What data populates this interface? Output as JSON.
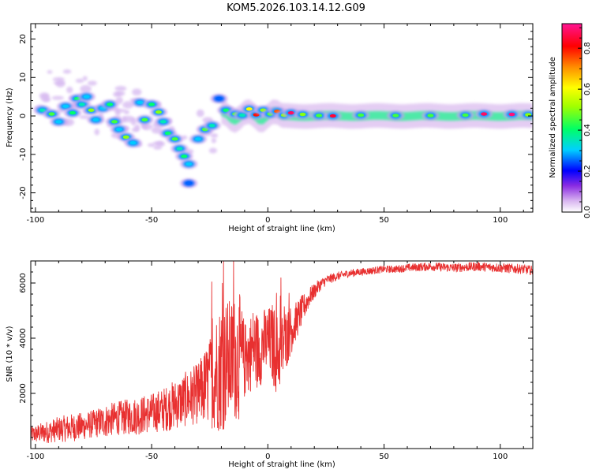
{
  "page_title": "KOM5.2026.103.14.12.G09",
  "chart_data": [
    {
      "type": "heatmap",
      "title": "KOM5.2026.103.14.12.G09",
      "xlabel": "Height of straight line (km)",
      "ylabel": "Frequency (Hz)",
      "xlim": [
        -102,
        114
      ],
      "ylim": [
        -25,
        24
      ],
      "x_ticks": [
        -100,
        -50,
        0,
        50,
        100
      ],
      "x_tick_labels": [
        "-100",
        "-50",
        "0",
        "50",
        "100"
      ],
      "y_ticks": [
        -20,
        -10,
        0,
        10,
        20
      ],
      "y_tick_labels": [
        "-20",
        "-10",
        "0",
        "10",
        "20"
      ],
      "colorbar": {
        "label": "Normalized spectral amplitude",
        "range": [
          0,
          0.92
        ],
        "ticks": [
          0.0,
          0.2,
          0.4,
          0.6,
          0.8
        ],
        "tick_labels": [
          "0.0",
          "0.2",
          "0.4",
          "0.6",
          "0.8"
        ]
      },
      "blobs": [
        {
          "x": -97,
          "y": 1.5,
          "value": 0.35
        },
        {
          "x": -93,
          "y": 0.5,
          "value": 0.45
        },
        {
          "x": -90,
          "y": -1.5,
          "value": 0.3
        },
        {
          "x": -87,
          "y": 2.5,
          "value": 0.3
        },
        {
          "x": -84,
          "y": 0.8,
          "value": 0.4
        },
        {
          "x": -82,
          "y": 4.5,
          "value": 0.4
        },
        {
          "x": -80,
          "y": 3.0,
          "value": 0.35
        },
        {
          "x": -78,
          "y": 5.0,
          "value": 0.3
        },
        {
          "x": -76,
          "y": 1.5,
          "value": 0.5
        },
        {
          "x": -74,
          "y": -1.0,
          "value": 0.3
        },
        {
          "x": -71,
          "y": 2.0,
          "value": 0.3
        },
        {
          "x": -68,
          "y": 3.0,
          "value": 0.4
        },
        {
          "x": -66,
          "y": -1.5,
          "value": 0.45
        },
        {
          "x": -64,
          "y": -3.5,
          "value": 0.3
        },
        {
          "x": -61,
          "y": -5.5,
          "value": 0.5
        },
        {
          "x": -58,
          "y": -7.0,
          "value": 0.3
        },
        {
          "x": -55,
          "y": 3.5,
          "value": 0.3
        },
        {
          "x": -53,
          "y": -1.0,
          "value": 0.45
        },
        {
          "x": -50,
          "y": 3.0,
          "value": 0.4
        },
        {
          "x": -47,
          "y": 1.0,
          "value": 0.5
        },
        {
          "x": -45,
          "y": -1.5,
          "value": 0.35
        },
        {
          "x": -43,
          "y": -4.5,
          "value": 0.4
        },
        {
          "x": -40,
          "y": -6.0,
          "value": 0.45
        },
        {
          "x": -38,
          "y": -8.5,
          "value": 0.35
        },
        {
          "x": -36,
          "y": -10.5,
          "value": 0.4
        },
        {
          "x": -34,
          "y": -12.5,
          "value": 0.3
        },
        {
          "x": -34,
          "y": -17.5,
          "value": 0.25
        },
        {
          "x": -30,
          "y": -6.0,
          "value": 0.3
        },
        {
          "x": -27,
          "y": -3.5,
          "value": 0.45
        },
        {
          "x": -24,
          "y": -2.5,
          "value": 0.35
        },
        {
          "x": -21,
          "y": 4.5,
          "value": 0.25
        },
        {
          "x": -18,
          "y": 1.5,
          "value": 0.4
        },
        {
          "x": -14,
          "y": 0.5,
          "value": 0.45
        },
        {
          "x": -11,
          "y": 0.2,
          "value": 0.35
        },
        {
          "x": -8,
          "y": 1.8,
          "value": 0.6
        },
        {
          "x": -5,
          "y": 0.3,
          "value": 0.8
        },
        {
          "x": -2,
          "y": 1.5,
          "value": 0.5
        },
        {
          "x": 1,
          "y": 0.5,
          "value": 0.45
        },
        {
          "x": 4,
          "y": 1.2,
          "value": 0.75
        },
        {
          "x": 7,
          "y": 0.2,
          "value": 0.5
        },
        {
          "x": 10,
          "y": 0.8,
          "value": 0.88
        },
        {
          "x": 15,
          "y": 0.4,
          "value": 0.5
        },
        {
          "x": 22,
          "y": 0.1,
          "value": 0.45
        },
        {
          "x": 28,
          "y": 0.0,
          "value": 0.85
        },
        {
          "x": 40,
          "y": 0.2,
          "value": 0.45
        },
        {
          "x": 55,
          "y": 0.1,
          "value": 0.45
        },
        {
          "x": 70,
          "y": 0.1,
          "value": 0.45
        },
        {
          "x": 85,
          "y": 0.2,
          "value": 0.45
        },
        {
          "x": 93,
          "y": 0.5,
          "value": 0.88
        },
        {
          "x": 105,
          "y": 0.4,
          "value": 0.9
        },
        {
          "x": 112,
          "y": 0.3,
          "value": 0.5
        }
      ]
    },
    {
      "type": "line",
      "xlabel": "Height of straight line (km)",
      "ylabel": "SNR (10 * v/v)",
      "xlim": [
        -102,
        114
      ],
      "ylim": [
        0,
        6800
      ],
      "x_ticks": [
        -100,
        -50,
        0,
        50,
        100
      ],
      "x_tick_labels": [
        "-100",
        "-50",
        "0",
        "50",
        "100"
      ],
      "y_ticks": [
        2000,
        4000,
        6000
      ],
      "y_tick_labels": [
        "2000",
        "4000",
        "6000"
      ],
      "series": [
        {
          "name": "SNR",
          "color": "#e83030",
          "x": [
            -102,
            -95,
            -90,
            -85,
            -80,
            -75,
            -70,
            -65,
            -60,
            -55,
            -50,
            -45,
            -40,
            -35,
            -30,
            -25,
            -22,
            -20,
            -18,
            -16,
            -14,
            -12,
            -10,
            -8,
            -6,
            -4,
            -2,
            0,
            2,
            4,
            6,
            8,
            10,
            12,
            14,
            16,
            18,
            20,
            22,
            25,
            30,
            35,
            40,
            45,
            50,
            55,
            60,
            70,
            80,
            90,
            100,
            110,
            114
          ],
          "values": [
            500,
            600,
            700,
            750,
            800,
            900,
            1000,
            1100,
            1150,
            1200,
            1300,
            1400,
            1600,
            1800,
            2000,
            2400,
            2800,
            3000,
            3100,
            3200,
            3300,
            3300,
            3200,
            3400,
            3700,
            3500,
            3800,
            3900,
            3800,
            3400,
            3600,
            4000,
            4300,
            4600,
            4900,
            5200,
            5500,
            5700,
            5900,
            6100,
            6250,
            6350,
            6400,
            6450,
            6500,
            6500,
            6550,
            6600,
            6550,
            6600,
            6550,
            6500,
            6450
          ],
          "noise": [
            300,
            400,
            450,
            500,
            500,
            500,
            600,
            600,
            650,
            700,
            700,
            800,
            900,
            1000,
            1100,
            1600,
            2200,
            2400,
            2400,
            2200,
            2300,
            2300,
            1400,
            1400,
            1500,
            1400,
            1300,
            1200,
            1500,
            1500,
            1300,
            1100,
            900,
            700,
            600,
            450,
            350,
            280,
            230,
            180,
            150,
            140,
            130,
            130,
            130,
            130,
            140,
            150,
            160,
            160,
            170,
            170,
            170
          ]
        }
      ]
    }
  ]
}
